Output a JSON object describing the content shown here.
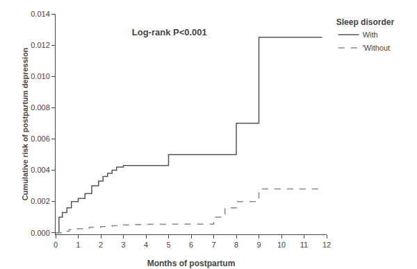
{
  "chart_data": {
    "type": "step",
    "title": "Log-rank P<0.001",
    "xlabel": "Months of postpartum",
    "ylabel": "Cumulative risk of postpartum depression",
    "legend_title": "Sleep disorder",
    "legend": "right",
    "grid": false,
    "series": [
      {
        "name": "With",
        "color": "#555555",
        "line_style": "solid",
        "x": [
          0,
          0.15,
          0.3,
          0.5,
          0.7,
          1.0,
          1.3,
          1.6,
          1.9,
          2.1,
          2.3,
          2.5,
          2.7,
          3.0,
          5.0,
          7.0,
          8.0,
          9.0,
          11.8
        ],
        "values": [
          0,
          0.001,
          0.0013,
          0.0016,
          0.002,
          0.0022,
          0.0025,
          0.003,
          0.0033,
          0.0036,
          0.0038,
          0.004,
          0.0042,
          0.0043,
          0.005,
          0.005,
          0.007,
          0.0125,
          0.0125
        ]
      },
      {
        "name": "'Without",
        "color": "#888888",
        "line_style": "dashed",
        "x": [
          0,
          0.3,
          0.6,
          0.9,
          1.2,
          1.5,
          2.0,
          2.5,
          3.0,
          3.5,
          4.0,
          5.0,
          6.0,
          7.0,
          7.5,
          8.0,
          8.5,
          9.0,
          9.5,
          11.8
        ],
        "values": [
          0,
          0.0001,
          0.0002,
          0.00025,
          0.0003,
          0.00035,
          0.0004,
          0.00045,
          0.0005,
          0.00052,
          0.00054,
          0.00055,
          0.00055,
          0.001,
          0.0016,
          0.002,
          0.002,
          0.0028,
          0.0028,
          0.0028
        ]
      }
    ],
    "xlim": [
      0,
      12
    ],
    "ylim": [
      -0.0001,
      0.014
    ],
    "xticks": [
      0,
      1,
      2,
      3,
      4,
      5,
      6,
      7,
      8,
      9,
      10,
      11,
      12
    ],
    "yticks": [
      {
        "value": 0,
        "label": "0.000"
      },
      0.002,
      0.004,
      0.006,
      0.008,
      {
        "value": 0.01,
        "label": "0.010"
      },
      0.012,
      0.014
    ]
  }
}
